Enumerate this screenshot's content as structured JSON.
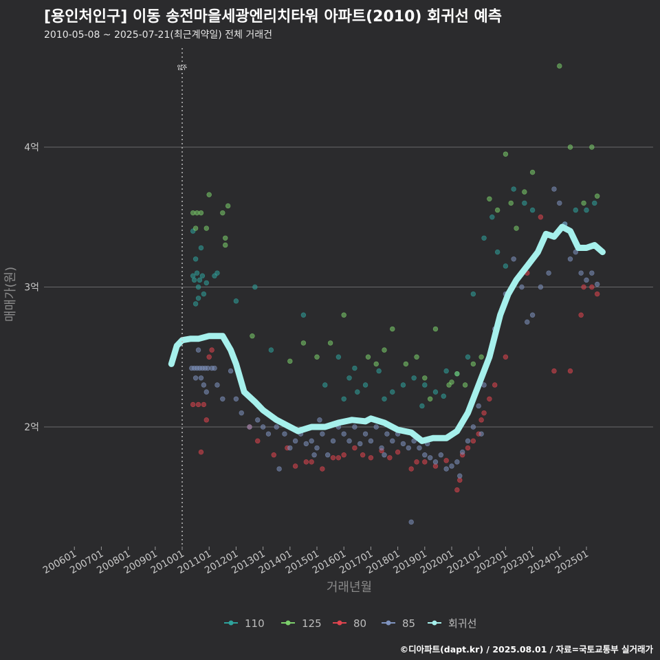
{
  "header": {
    "title": "[용인처인구] 이동 송전마을세광엔리치타워 아파트(2010) 회귀선 예측",
    "subtitle": "2010-05-08 ~ 2025-07-21(최근계약일) 전체 거래건"
  },
  "credit": "©디아파트(dapt.kr) / 2025.08.01 / 자료=국토교통부 실거래가",
  "chart_data": {
    "type": "scatter",
    "xlabel": "거래년월",
    "ylabel": "매매가(원)",
    "x_ticks": [
      "200601",
      "200701",
      "200801",
      "200901",
      "201001",
      "201101",
      "201201",
      "201301",
      "201401",
      "201501",
      "201601",
      "201701",
      "201801",
      "201901",
      "202001",
      "202101",
      "202201",
      "202301",
      "202401",
      "202501"
    ],
    "y_ticks": [
      {
        "value": 2,
        "label": "2억"
      },
      {
        "value": 3,
        "label": "3억"
      },
      {
        "value": 4,
        "label": "4억"
      }
    ],
    "xlim": [
      2005.6,
      2026.4
    ],
    "ylim": [
      1.2,
      4.8
    ],
    "grid": true,
    "vline": {
      "x": 2010.0,
      "label": "입주"
    },
    "legend_position": "bottom",
    "series_colors": {
      "110": "#2fa39c",
      "125": "#7ccf6b",
      "80": "#e0454f",
      "85": "#7f93bf",
      "회귀선": "#a6f0ec"
    },
    "series": [
      {
        "name": "110",
        "points": [
          [
            2010.4,
            3.08
          ],
          [
            2010.45,
            3.05
          ],
          [
            2010.5,
            3.2
          ],
          [
            2010.55,
            3.1
          ],
          [
            2010.6,
            3.0
          ],
          [
            2010.65,
            3.05
          ],
          [
            2010.75,
            3.08
          ],
          [
            2010.8,
            2.95
          ],
          [
            2010.9,
            3.03
          ],
          [
            2011.2,
            3.08
          ],
          [
            2011.3,
            3.1
          ],
          [
            2010.5,
            2.88
          ],
          [
            2010.6,
            2.92
          ],
          [
            2010.7,
            3.28
          ],
          [
            2010.4,
            3.4
          ],
          [
            2012.0,
            2.9
          ],
          [
            2012.7,
            3.0
          ],
          [
            2013.3,
            2.55
          ],
          [
            2014.5,
            2.8
          ],
          [
            2015.8,
            2.5
          ],
          [
            2016.2,
            2.35
          ],
          [
            2016.4,
            2.42
          ],
          [
            2016.8,
            2.3
          ],
          [
            2016.5,
            2.25
          ],
          [
            2017.3,
            2.4
          ],
          [
            2017.5,
            2.2
          ],
          [
            2018.2,
            2.3
          ],
          [
            2018.6,
            2.35
          ],
          [
            2019.0,
            2.3
          ],
          [
            2019.4,
            2.25
          ],
          [
            2019.8,
            2.4
          ],
          [
            2020.2,
            2.38
          ],
          [
            2020.6,
            2.5
          ],
          [
            2020.8,
            2.95
          ],
          [
            2021.2,
            3.35
          ],
          [
            2021.5,
            3.5
          ],
          [
            2021.7,
            3.25
          ],
          [
            2022.0,
            3.15
          ],
          [
            2022.3,
            3.7
          ],
          [
            2022.7,
            3.6
          ],
          [
            2023.0,
            3.55
          ],
          [
            2024.2,
            3.45
          ],
          [
            2024.6,
            3.55
          ],
          [
            2025.0,
            3.55
          ],
          [
            2025.3,
            3.6
          ],
          [
            2015.3,
            2.3
          ],
          [
            2016.0,
            2.2
          ],
          [
            2017.8,
            2.25
          ],
          [
            2018.9,
            2.15
          ],
          [
            2019.7,
            2.22
          ]
        ]
      },
      {
        "name": "125",
        "points": [
          [
            2010.4,
            3.53
          ],
          [
            2010.55,
            3.53
          ],
          [
            2010.7,
            3.53
          ],
          [
            2010.9,
            3.42
          ],
          [
            2011.0,
            3.66
          ],
          [
            2011.5,
            3.53
          ],
          [
            2011.6,
            3.35
          ],
          [
            2011.7,
            3.58
          ],
          [
            2011.6,
            3.3
          ],
          [
            2010.5,
            3.42
          ],
          [
            2012.6,
            2.65
          ],
          [
            2014.0,
            2.47
          ],
          [
            2014.5,
            2.6
          ],
          [
            2015.0,
            2.5
          ],
          [
            2015.5,
            2.6
          ],
          [
            2016.0,
            2.8
          ],
          [
            2016.9,
            2.5
          ],
          [
            2017.2,
            2.45
          ],
          [
            2017.5,
            2.55
          ],
          [
            2017.8,
            2.7
          ],
          [
            2018.3,
            2.45
          ],
          [
            2018.7,
            2.5
          ],
          [
            2019.0,
            2.35
          ],
          [
            2019.4,
            2.7
          ],
          [
            2019.9,
            2.3
          ],
          [
            2020.0,
            2.32
          ],
          [
            2020.2,
            2.38
          ],
          [
            2020.5,
            2.3
          ],
          [
            2020.8,
            2.45
          ],
          [
            2021.1,
            2.5
          ],
          [
            2021.4,
            3.63
          ],
          [
            2021.7,
            3.55
          ],
          [
            2022.0,
            3.95
          ],
          [
            2022.2,
            3.6
          ],
          [
            2022.4,
            3.42
          ],
          [
            2022.7,
            3.68
          ],
          [
            2023.0,
            3.82
          ],
          [
            2024.0,
            4.58
          ],
          [
            2024.4,
            4.0
          ],
          [
            2025.2,
            4.0
          ],
          [
            2025.4,
            3.65
          ],
          [
            2024.9,
            3.6
          ],
          [
            2019.2,
            2.2
          ]
        ]
      },
      {
        "name": "80",
        "points": [
          [
            2010.4,
            2.16
          ],
          [
            2010.6,
            2.16
          ],
          [
            2010.8,
            2.16
          ],
          [
            2010.9,
            2.05
          ],
          [
            2011.0,
            2.5
          ],
          [
            2010.7,
            1.82
          ],
          [
            2011.1,
            2.55
          ],
          [
            2012.5,
            2.0
          ],
          [
            2012.8,
            1.9
          ],
          [
            2013.4,
            1.8
          ],
          [
            2013.9,
            1.85
          ],
          [
            2014.2,
            1.72
          ],
          [
            2014.6,
            1.75
          ],
          [
            2015.2,
            1.7
          ],
          [
            2015.6,
            1.78
          ],
          [
            2016.0,
            1.8
          ],
          [
            2016.4,
            1.85
          ],
          [
            2017.0,
            1.78
          ],
          [
            2017.4,
            1.83
          ],
          [
            2018.0,
            1.82
          ],
          [
            2018.5,
            1.7
          ],
          [
            2019.0,
            1.75
          ],
          [
            2019.4,
            1.72
          ],
          [
            2019.8,
            1.76
          ],
          [
            2020.2,
            1.55
          ],
          [
            2020.3,
            1.62
          ],
          [
            2020.4,
            1.8
          ],
          [
            2020.6,
            1.85
          ],
          [
            2020.8,
            1.9
          ],
          [
            2021.0,
            1.95
          ],
          [
            2021.1,
            2.05
          ],
          [
            2021.2,
            2.1
          ],
          [
            2021.4,
            2.2
          ],
          [
            2021.6,
            2.3
          ],
          [
            2022.0,
            2.5
          ],
          [
            2022.2,
            2.98
          ],
          [
            2022.4,
            3.05
          ],
          [
            2022.8,
            3.1
          ],
          [
            2023.3,
            3.5
          ],
          [
            2023.8,
            2.4
          ],
          [
            2024.4,
            2.4
          ],
          [
            2024.8,
            2.8
          ],
          [
            2024.9,
            3.0
          ],
          [
            2025.4,
            2.95
          ],
          [
            2025.2,
            3.0
          ],
          [
            2014.8,
            1.75
          ],
          [
            2015.8,
            1.78
          ],
          [
            2016.7,
            1.8
          ],
          [
            2017.7,
            1.78
          ],
          [
            2018.7,
            1.75
          ]
        ]
      },
      {
        "name": "85",
        "points": [
          [
            2010.35,
            2.42
          ],
          [
            2010.45,
            2.42
          ],
          [
            2010.55,
            2.42
          ],
          [
            2010.65,
            2.42
          ],
          [
            2010.75,
            2.42
          ],
          [
            2010.85,
            2.42
          ],
          [
            2010.95,
            2.42
          ],
          [
            2011.1,
            2.42
          ],
          [
            2011.2,
            2.42
          ],
          [
            2010.5,
            2.35
          ],
          [
            2010.7,
            2.35
          ],
          [
            2010.6,
            2.55
          ],
          [
            2010.8,
            2.3
          ],
          [
            2010.9,
            2.25
          ],
          [
            2011.3,
            2.3
          ],
          [
            2011.5,
            2.2
          ],
          [
            2011.8,
            2.4
          ],
          [
            2012.0,
            2.2
          ],
          [
            2012.2,
            2.1
          ],
          [
            2012.5,
            2.0
          ],
          [
            2012.8,
            2.05
          ],
          [
            2013.0,
            2.0
          ],
          [
            2013.2,
            1.95
          ],
          [
            2013.5,
            2.0
          ],
          [
            2013.8,
            1.95
          ],
          [
            2014.0,
            1.85
          ],
          [
            2014.2,
            1.9
          ],
          [
            2014.4,
            1.95
          ],
          [
            2014.6,
            1.88
          ],
          [
            2014.8,
            1.9
          ],
          [
            2015.0,
            1.85
          ],
          [
            2015.2,
            1.95
          ],
          [
            2015.4,
            1.8
          ],
          [
            2015.6,
            1.9
          ],
          [
            2015.8,
            2.0
          ],
          [
            2016.0,
            1.95
          ],
          [
            2016.2,
            1.9
          ],
          [
            2016.4,
            2.0
          ],
          [
            2016.6,
            1.88
          ],
          [
            2016.8,
            1.95
          ],
          [
            2017.0,
            1.9
          ],
          [
            2017.2,
            2.0
          ],
          [
            2017.4,
            1.85
          ],
          [
            2017.6,
            1.95
          ],
          [
            2017.8,
            1.9
          ],
          [
            2018.0,
            1.95
          ],
          [
            2018.2,
            1.88
          ],
          [
            2018.4,
            1.85
          ],
          [
            2018.6,
            1.9
          ],
          [
            2018.8,
            1.85
          ],
          [
            2019.0,
            1.8
          ],
          [
            2019.2,
            1.78
          ],
          [
            2019.4,
            1.75
          ],
          [
            2019.6,
            1.8
          ],
          [
            2019.8,
            1.7
          ],
          [
            2020.0,
            1.72
          ],
          [
            2020.2,
            1.75
          ],
          [
            2020.4,
            1.82
          ],
          [
            2020.6,
            1.9
          ],
          [
            2020.8,
            2.0
          ],
          [
            2021.0,
            2.15
          ],
          [
            2021.2,
            2.3
          ],
          [
            2021.4,
            2.5
          ],
          [
            2021.6,
            2.7
          ],
          [
            2021.8,
            2.8
          ],
          [
            2022.0,
            2.95
          ],
          [
            2022.3,
            3.2
          ],
          [
            2022.6,
            3.0
          ],
          [
            2022.8,
            2.75
          ],
          [
            2023.0,
            2.8
          ],
          [
            2023.3,
            3.0
          ],
          [
            2023.6,
            3.1
          ],
          [
            2023.8,
            3.7
          ],
          [
            2024.0,
            3.6
          ],
          [
            2024.2,
            3.45
          ],
          [
            2024.4,
            3.2
          ],
          [
            2024.6,
            3.25
          ],
          [
            2024.8,
            3.1
          ],
          [
            2025.0,
            3.05
          ],
          [
            2025.2,
            3.1
          ],
          [
            2025.4,
            3.02
          ],
          [
            2018.5,
            1.32
          ],
          [
            2019.1,
            1.88
          ],
          [
            2015.1,
            2.05
          ],
          [
            2016.9,
            2.05
          ],
          [
            2013.6,
            1.7
          ],
          [
            2014.9,
            1.8
          ],
          [
            2017.5,
            1.8
          ],
          [
            2020.3,
            1.65
          ],
          [
            2021.1,
            1.95
          ]
        ]
      }
    ],
    "regression": [
      [
        2009.6,
        2.45
      ],
      [
        2009.8,
        2.58
      ],
      [
        2010.0,
        2.62
      ],
      [
        2010.3,
        2.63
      ],
      [
        2010.6,
        2.63
      ],
      [
        2011.0,
        2.65
      ],
      [
        2011.5,
        2.65
      ],
      [
        2011.8,
        2.55
      ],
      [
        2012.0,
        2.45
      ],
      [
        2012.3,
        2.25
      ],
      [
        2012.7,
        2.18
      ],
      [
        2013.0,
        2.12
      ],
      [
        2013.5,
        2.05
      ],
      [
        2014.0,
        2.0
      ],
      [
        2014.3,
        1.97
      ],
      [
        2014.8,
        2.0
      ],
      [
        2015.3,
        2.0
      ],
      [
        2015.8,
        2.03
      ],
      [
        2016.3,
        2.05
      ],
      [
        2016.8,
        2.04
      ],
      [
        2017.0,
        2.06
      ],
      [
        2017.5,
        2.03
      ],
      [
        2018.0,
        1.98
      ],
      [
        2018.5,
        1.96
      ],
      [
        2018.9,
        1.9
      ],
      [
        2019.3,
        1.92
      ],
      [
        2019.8,
        1.92
      ],
      [
        2020.2,
        1.97
      ],
      [
        2020.6,
        2.1
      ],
      [
        2021.0,
        2.3
      ],
      [
        2021.4,
        2.5
      ],
      [
        2021.8,
        2.8
      ],
      [
        2022.1,
        2.95
      ],
      [
        2022.4,
        3.05
      ],
      [
        2022.8,
        3.15
      ],
      [
        2023.2,
        3.25
      ],
      [
        2023.5,
        3.38
      ],
      [
        2023.8,
        3.36
      ],
      [
        2024.1,
        3.43
      ],
      [
        2024.4,
        3.4
      ],
      [
        2024.7,
        3.28
      ],
      [
        2025.0,
        3.28
      ],
      [
        2025.3,
        3.3
      ],
      [
        2025.6,
        3.25
      ]
    ]
  }
}
